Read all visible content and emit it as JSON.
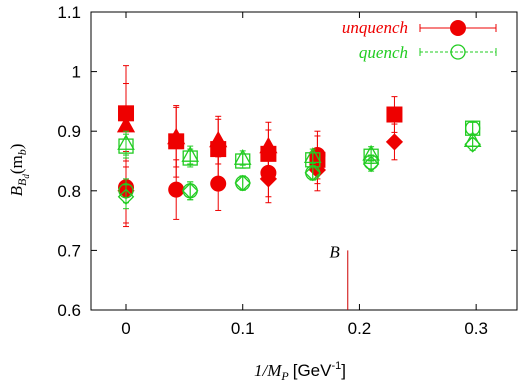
{
  "chart_data": {
    "type": "scatter",
    "xlabel_prefix": "1/M",
    "xlabel_sub": "P",
    "xlabel_unit": "[GeV",
    "xlabel_sup": "-1",
    "xlabel_close": "]",
    "ylabel_main": "B",
    "ylabel_sub1": "B",
    "ylabel_sub2": "d",
    "ylabel_arg": "(m",
    "ylabel_arg_sub": "b",
    "ylabel_close": ")",
    "xlim": [
      -0.03,
      0.335
    ],
    "ylim": [
      0.6,
      1.1
    ],
    "xticks": [
      {
        "value": 0,
        "label": "0"
      },
      {
        "value": 0.1,
        "label": "0.1"
      },
      {
        "value": 0.2,
        "label": "0.2"
      },
      {
        "value": 0.3,
        "label": "0.3"
      }
    ],
    "yticks": [
      {
        "value": 0.6,
        "label": "0.6"
      },
      {
        "value": 0.7,
        "label": "0.7"
      },
      {
        "value": 0.8,
        "label": "0.8"
      },
      {
        "value": 0.9,
        "label": "0.9"
      },
      {
        "value": 1.0,
        "label": "1"
      },
      {
        "value": 1.1,
        "label": "1.1"
      }
    ],
    "grid": false,
    "legend_position": "top-right",
    "colors": {
      "unquench": "#ee0000",
      "quench": "#22cc22"
    },
    "series": [
      {
        "name": "unquench",
        "marker": "filled-circle",
        "points": [
          {
            "x": 0.0,
            "y": 0.806,
            "err": 0.06
          },
          {
            "x": 0.043,
            "y": 0.802,
            "err": 0.05
          },
          {
            "x": 0.079,
            "y": 0.812,
            "err": 0.045
          },
          {
            "x": 0.122,
            "y": 0.83,
            "err": 0.04
          },
          {
            "x": 0.164,
            "y": 0.86,
            "err": 0.04
          }
        ]
      },
      {
        "name": "",
        "marker": "filled-square",
        "points": [
          {
            "x": 0.0,
            "y": 0.93,
            "err": 0.08
          },
          {
            "x": 0.043,
            "y": 0.883,
            "err": 0.06
          },
          {
            "x": 0.079,
            "y": 0.87,
            "err": 0.05
          },
          {
            "x": 0.122,
            "y": 0.862,
            "err": 0.04
          },
          {
            "x": 0.164,
            "y": 0.852,
            "err": 0.04
          },
          {
            "x": 0.23,
            "y": 0.928,
            "err": 0.03
          }
        ]
      },
      {
        "name": "",
        "marker": "filled-triangle",
        "points": [
          {
            "x": 0.0,
            "y": 0.91,
            "err": 0.07
          },
          {
            "x": 0.043,
            "y": 0.89,
            "err": 0.05
          },
          {
            "x": 0.079,
            "y": 0.885,
            "err": 0.04
          },
          {
            "x": 0.122,
            "y": 0.875,
            "err": 0.04
          }
        ]
      },
      {
        "name": "",
        "marker": "filled-diamond",
        "points": [
          {
            "x": 0.0,
            "y": 0.8,
            "err": 0.06
          },
          {
            "x": 0.122,
            "y": 0.82,
            "err": 0.04
          },
          {
            "x": 0.164,
            "y": 0.835,
            "err": 0.035
          },
          {
            "x": 0.23,
            "y": 0.882,
            "err": 0.03
          }
        ]
      },
      {
        "name": "quench",
        "marker": "open-circle",
        "points": [
          {
            "x": 0.0,
            "y": 0.8,
            "err": 0.02
          },
          {
            "x": 0.055,
            "y": 0.8,
            "err": 0.015
          },
          {
            "x": 0.1,
            "y": 0.813,
            "err": 0.012
          },
          {
            "x": 0.16,
            "y": 0.83,
            "err": 0.012
          },
          {
            "x": 0.21,
            "y": 0.848,
            "err": 0.012
          },
          {
            "x": 0.297,
            "y": 0.905,
            "err": 0.01
          }
        ]
      },
      {
        "name": "",
        "marker": "open-square",
        "points": [
          {
            "x": 0.0,
            "y": 0.875,
            "err": 0.02
          },
          {
            "x": 0.055,
            "y": 0.855,
            "err": 0.015
          },
          {
            "x": 0.1,
            "y": 0.85,
            "err": 0.012
          },
          {
            "x": 0.16,
            "y": 0.852,
            "err": 0.012
          },
          {
            "x": 0.21,
            "y": 0.858,
            "err": 0.012
          },
          {
            "x": 0.297,
            "y": 0.905,
            "err": 0.01
          }
        ]
      },
      {
        "name": "",
        "marker": "open-triangle",
        "points": [
          {
            "x": 0.0,
            "y": 0.88,
            "err": 0.02
          },
          {
            "x": 0.055,
            "y": 0.86,
            "err": 0.015
          },
          {
            "x": 0.1,
            "y": 0.855,
            "err": 0.012
          },
          {
            "x": 0.16,
            "y": 0.858,
            "err": 0.012
          },
          {
            "x": 0.21,
            "y": 0.862,
            "err": 0.012
          },
          {
            "x": 0.297,
            "y": 0.885,
            "err": 0.01
          }
        ]
      },
      {
        "name": "",
        "marker": "open-diamond",
        "points": [
          {
            "x": 0.0,
            "y": 0.79,
            "err": 0.02
          },
          {
            "x": 0.055,
            "y": 0.8,
            "err": 0.015
          },
          {
            "x": 0.1,
            "y": 0.813,
            "err": 0.012
          },
          {
            "x": 0.16,
            "y": 0.83,
            "err": 0.012
          },
          {
            "x": 0.21,
            "y": 0.845,
            "err": 0.012
          },
          {
            "x": 0.297,
            "y": 0.878,
            "err": 0.01
          }
        ]
      }
    ],
    "annotations": [
      {
        "text": "B",
        "x": 0.19,
        "y_from": 0.6,
        "y_to": 0.7
      }
    ]
  }
}
